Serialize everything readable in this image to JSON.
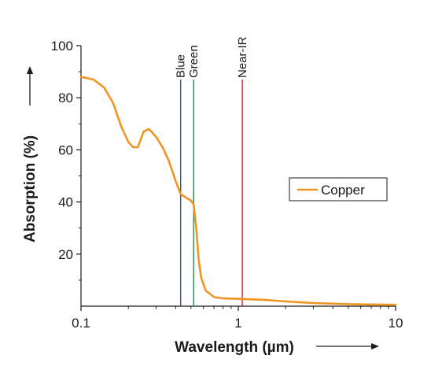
{
  "chart_data": {
    "type": "line",
    "xscale": "log",
    "xlim": [
      0.1,
      10
    ],
    "ylim": [
      0,
      100
    ],
    "xlabel": "Wavelength (µm)",
    "ylabel": "Absorption (%)",
    "x_tick_labels": [
      "0.1",
      "1",
      "10"
    ],
    "y_tick_labels": [
      "20",
      "40",
      "60",
      "80",
      "100"
    ],
    "y_ticks": [
      20,
      40,
      60,
      80,
      100
    ],
    "x_ticks": [
      0.1,
      1,
      10
    ],
    "legend_position": "right",
    "series": [
      {
        "name": "Copper",
        "color": "#F29423",
        "x": [
          0.1,
          0.12,
          0.14,
          0.16,
          0.18,
          0.2,
          0.215,
          0.23,
          0.25,
          0.27,
          0.3,
          0.33,
          0.36,
          0.4,
          0.43,
          0.47,
          0.5,
          0.52,
          0.54,
          0.56,
          0.58,
          0.62,
          0.7,
          0.8,
          1.0,
          1.5,
          2.0,
          3.0,
          5.0,
          10.0
        ],
        "y": [
          88,
          87,
          84,
          78,
          69,
          63,
          61,
          61,
          67,
          68,
          65,
          61,
          56,
          48,
          43,
          41.5,
          40.5,
          39,
          30,
          18,
          11,
          6,
          3.5,
          3,
          2.8,
          2.4,
          1.8,
          1.2,
          0.8,
          0.5
        ]
      }
    ],
    "vertical_lines": [
      {
        "label": "Blue",
        "x": 0.43,
        "color": "#3C4FA2"
      },
      {
        "label": "Green",
        "x": 0.52,
        "color": "#2E8B4A"
      },
      {
        "label": "Near-IR",
        "x": 1.06,
        "color": "#B82933"
      }
    ]
  }
}
